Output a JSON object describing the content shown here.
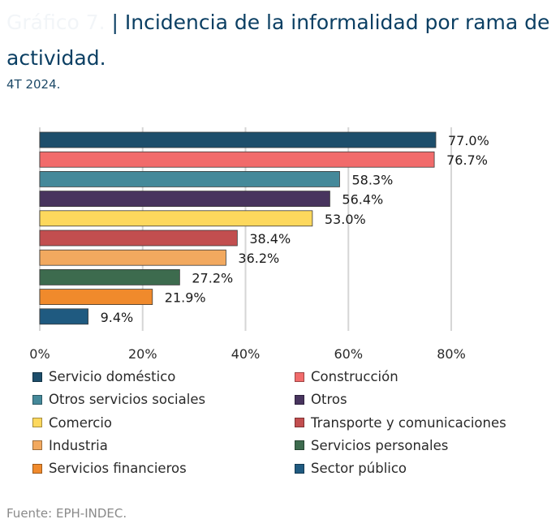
{
  "header": {
    "ghost_text": "Gráfico 7.",
    "title": "| Incidencia de la informalidad por rama de actividad.",
    "subtitle": "4T 2024."
  },
  "source": "Fuente: EPH-INDEC.",
  "chart_data": {
    "type": "bar",
    "orientation": "horizontal",
    "title": "| Incidencia de la informalidad por rama de actividad.",
    "subtitle": "4T 2024.",
    "categories": [
      "Servicio doméstico",
      "Construcción",
      "Otros servicios sociales",
      "Otros",
      "Comercio",
      "Transporte y comunicaciones",
      "Industria",
      "Servicios personales",
      "Servicios financieros",
      "Sector público"
    ],
    "values": [
      77.0,
      76.7,
      58.3,
      56.4,
      53.0,
      38.4,
      36.2,
      27.2,
      21.9,
      9.4
    ],
    "data_labels": [
      "77.0%",
      "76.7%",
      "58.3%",
      "56.4%",
      "53.0%",
      "38.4%",
      "36.2%",
      "27.2%",
      "21.9%",
      "9.4%"
    ],
    "colors": [
      "#1d4e6b",
      "#f16b6b",
      "#45899a",
      "#48345e",
      "#fdd85d",
      "#c24e4f",
      "#f2a95f",
      "#3d6b4e",
      "#f08a2c",
      "#1f5a80"
    ],
    "xlim": [
      0,
      80
    ],
    "xticks": [
      0,
      20,
      40,
      60,
      80
    ],
    "xtick_labels": [
      "0%",
      "20%",
      "40%",
      "60%",
      "80%"
    ],
    "grid": "vertical",
    "legend_position": "bottom",
    "legend_columns": 2
  }
}
